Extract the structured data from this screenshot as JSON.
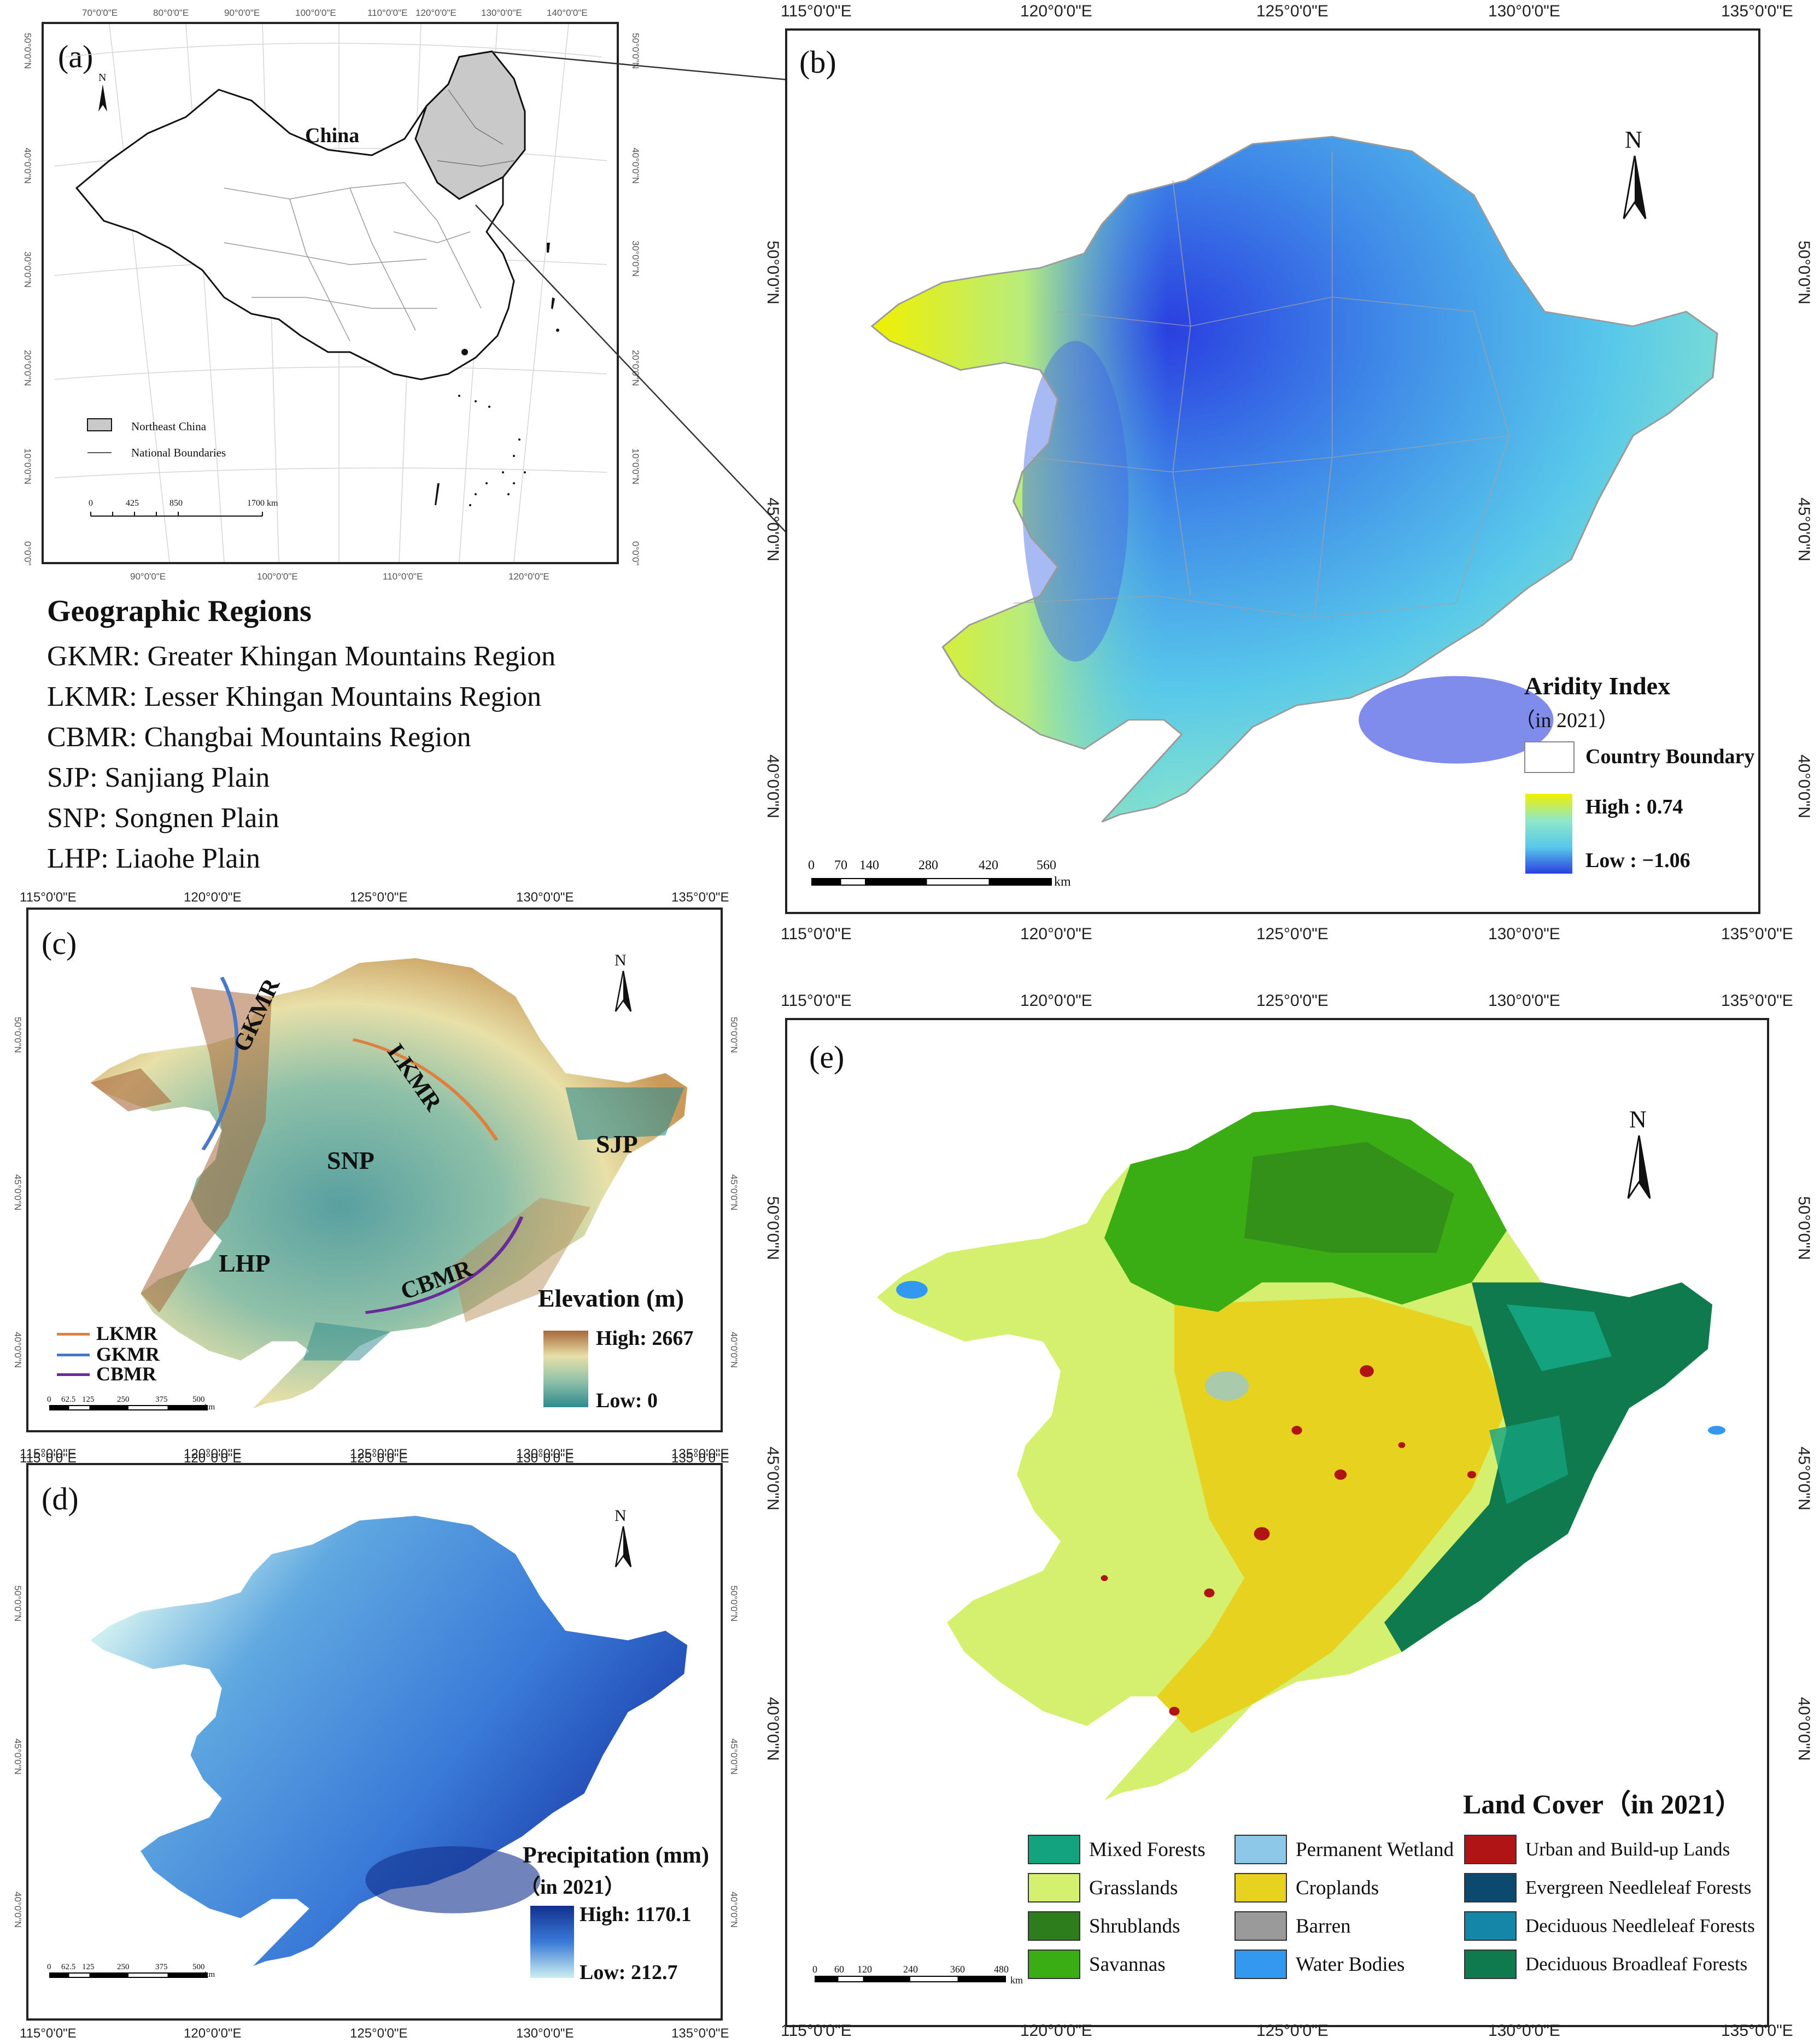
{
  "panel_a": {
    "label": "(a)",
    "country": "China",
    "legend": {
      "northeast": "Northeast China",
      "boundaries": "National Boundaries"
    },
    "scale": [
      "0",
      "425",
      "850",
      "1700 km"
    ],
    "top_lons": [
      "70°0'0\"E",
      "80°0'0\"E",
      "90°0'0\"E",
      "100°0'0\"E",
      "110°0'0\"E",
      "120°0'0\"E",
      "130°0'0\"E",
      "140°0'0\"E"
    ],
    "bottom_lons": [
      "90°0'0\"E",
      "100°0'0\"E",
      "110°0'0\"E",
      "120°0'0\"E"
    ],
    "lats": [
      "50°0'0\"N",
      "40°0'0\"N",
      "30°0'0\"N",
      "20°0'0\"N",
      "10°0'0\"N",
      "0°0'0\""
    ]
  },
  "regions": {
    "title": "Geographic Regions",
    "items": [
      "GKMR: Greater Khingan Mountains Region",
      "LKMR: Lesser Khingan Mountains Region",
      "CBMR: Changbai Mountains Region",
      "SJP: Sanjiang Plain",
      "SNP: Songnen Plain",
      "LHP: Liaohe Plain"
    ]
  },
  "panel_b": {
    "label": "(b)",
    "lons": [
      "115°0'0\"E",
      "120°0'0\"E",
      "125°0'0\"E",
      "130°0'0\"E",
      "135°0'0\"E"
    ],
    "lats": [
      "50°0'0\"N",
      "45°0'0\"N",
      "40°0'0\"N"
    ],
    "north": "N",
    "legend_title": "Aridity Index",
    "legend_sub": "（in 2021）",
    "boundary": "Country Boundary",
    "high": "High : 0.74",
    "low": "Low : −1.06",
    "scale": [
      "0",
      "70",
      "140",
      "280",
      "420",
      "560"
    ],
    "unit": "km"
  },
  "panel_c": {
    "label": "(c)",
    "lons": [
      "115°0'0\"E",
      "120°0'0\"E",
      "125°0'0\"E",
      "130°0'0\"E",
      "135°0'0\"E"
    ],
    "lats": [
      "50°0'0\"N",
      "45°0'0\"N",
      "40°0'0\"N"
    ],
    "north": "N",
    "regions": {
      "gkmr": "GKMR",
      "lkmr": "LKMR",
      "snp": "SNP",
      "sjp": "SJP",
      "lhp": "LHP",
      "cbmr": "CBMR"
    },
    "lines": [
      "LKMR",
      "GKMR",
      "CBMR"
    ],
    "legend_title": "Elevation (m)",
    "high": "High: 2667",
    "low": "Low: 0",
    "scale": [
      "0",
      "62.5",
      "125",
      "250",
      "375",
      "500"
    ],
    "unit": "km"
  },
  "panel_d": {
    "label": "(d)",
    "lons": [
      "115°0'0\"E",
      "120°0'0\"E",
      "125°0'0\"E",
      "130°0'0\"E",
      "135°0'0\"E"
    ],
    "lats": [
      "50°0'0\"N",
      "45°0'0\"N",
      "40°0'0\"N"
    ],
    "north": "N",
    "legend_title": "Precipitation (mm)",
    "legend_sub": "（in 2021）",
    "high": "High: 1170.1",
    "low": "Low: 212.7",
    "scale": [
      "0",
      "62.5",
      "125",
      "250",
      "375",
      "500"
    ],
    "unit": "km"
  },
  "panel_e": {
    "label": "(e)",
    "lons": [
      "115°0'0\"E",
      "120°0'0\"E",
      "125°0'0\"E",
      "130°0'0\"E",
      "135°0'0\"E"
    ],
    "lats": [
      "50°0'0\"N",
      "45°0'0\"N",
      "40°0'0\"N"
    ],
    "north": "N",
    "legend_title": "Land Cover（in 2021）",
    "classes": [
      {
        "name": "Mixed Forests",
        "color": "#14a37f"
      },
      {
        "name": "Grasslands",
        "color": "#d4f06e"
      },
      {
        "name": "Shrublands",
        "color": "#2e7d1c"
      },
      {
        "name": "Savannas",
        "color": "#3aad14"
      },
      {
        "name": "Permanent Wetland",
        "color": "#8ec8e8"
      },
      {
        "name": "Croplands",
        "color": "#e6d21f"
      },
      {
        "name": "Barren",
        "color": "#9a9a9a"
      },
      {
        "name": "Water Bodies",
        "color": "#3398f0"
      },
      {
        "name": "Urban and Build-up Lands",
        "color": "#b01414"
      },
      {
        "name": "Evergreen Needleleaf Forests",
        "color": "#0b4a6e"
      },
      {
        "name": "Deciduous Needleleaf Forests",
        "color": "#1487a8"
      },
      {
        "name": "Deciduous Broadleaf Forests",
        "color": "#0f7a4e"
      }
    ],
    "scale": [
      "0",
      "60",
      "120",
      "240",
      "360",
      "480"
    ],
    "unit": "km"
  }
}
